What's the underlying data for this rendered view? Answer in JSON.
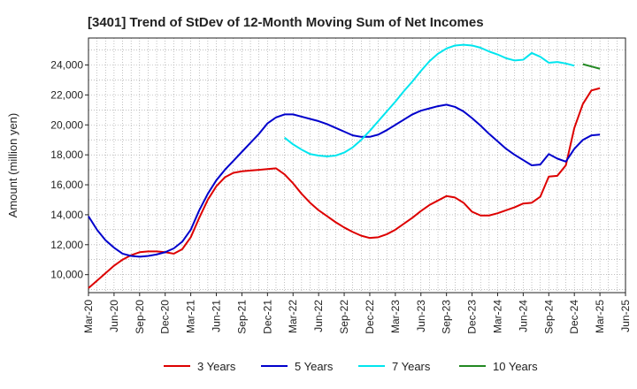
{
  "chart_data": {
    "type": "line",
    "title": "[3401]  Trend of StDev of 12-Month Moving Sum of Net Incomes",
    "xlabel": "",
    "ylabel": "Amount (million yen)",
    "ylim": [
      8800,
      25800
    ],
    "yticks": [
      10000,
      12000,
      14000,
      16000,
      18000,
      20000,
      22000,
      24000
    ],
    "ytick_labels": [
      "10,000",
      "12,000",
      "14,000",
      "16,000",
      "18,000",
      "20,000",
      "22,000",
      "24,000"
    ],
    "x_range": [
      "2020-03",
      "2025-06"
    ],
    "xtick_labels": [
      "Mar-20",
      "Jun-20",
      "Sep-20",
      "Dec-20",
      "Mar-21",
      "Jun-21",
      "Sep-21",
      "Dec-21",
      "Mar-22",
      "Jun-22",
      "Sep-22",
      "Dec-22",
      "Mar-23",
      "Jun-23",
      "Sep-23",
      "Dec-23",
      "Mar-24",
      "Jun-24",
      "Sep-24",
      "Dec-24",
      "Mar-25",
      "Jun-25"
    ],
    "grid": true,
    "legend_position": "bottom",
    "series": [
      {
        "name": "3 Years",
        "color": "#dd0000",
        "start": "2020-03",
        "values": [
          9100,
          9600,
          10100,
          10600,
          11000,
          11300,
          11500,
          11550,
          11550,
          11500,
          11400,
          11700,
          12500,
          13800,
          15000,
          15900,
          16500,
          16800,
          16900,
          16950,
          17000,
          17050,
          17100,
          16700,
          16100,
          15400,
          14800,
          14300,
          13900,
          13500,
          13150,
          12850,
          12600,
          12450,
          12500,
          12700,
          13000,
          13400,
          13800,
          14250,
          14650,
          14950,
          15250,
          15150,
          14800,
          14200,
          13950,
          13950,
          14100,
          14300,
          14500,
          14750,
          14800,
          15200,
          16550,
          16600,
          17300,
          19800,
          21400,
          22300,
          22450
        ]
      },
      {
        "name": "5 Years",
        "color": "#0000cc",
        "start": "2020-03",
        "values": [
          13900,
          13000,
          12300,
          11800,
          11400,
          11250,
          11200,
          11250,
          11350,
          11500,
          11750,
          12200,
          13000,
          14300,
          15400,
          16300,
          17000,
          17600,
          18200,
          18800,
          19400,
          20100,
          20500,
          20700,
          20700,
          20550,
          20400,
          20250,
          20050,
          19800,
          19550,
          19300,
          19200,
          19200,
          19350,
          19650,
          20000,
          20350,
          20700,
          20950,
          21100,
          21250,
          21350,
          21200,
          20900,
          20450,
          19950,
          19400,
          18900,
          18400,
          18000,
          17650,
          17300,
          17350,
          18050,
          17750,
          17550,
          18400,
          19000,
          19300,
          19350
        ]
      },
      {
        "name": "7 Years",
        "color": "#00e5ee",
        "start": "2022-02",
        "values": [
          19150,
          18700,
          18350,
          18050,
          17950,
          17900,
          17950,
          18150,
          18500,
          19000,
          19600,
          20250,
          20900,
          21550,
          22250,
          22900,
          23600,
          24250,
          24750,
          25100,
          25300,
          25350,
          25300,
          25150,
          24900,
          24700,
          24450,
          24300,
          24350,
          24800,
          24550,
          24150,
          24200,
          24100,
          23950
        ]
      },
      {
        "name": "10 Years",
        "color": "#228822",
        "start": "2025-01",
        "values": [
          24050,
          23900,
          23750
        ]
      }
    ]
  }
}
